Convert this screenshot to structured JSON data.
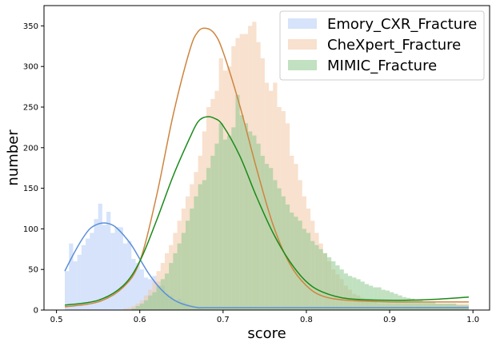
{
  "chart_data": {
    "type": "histogram",
    "xlabel": "score",
    "ylabel": "number",
    "xlim": [
      0.485,
      1.02
    ],
    "ylim": [
      0,
      375
    ],
    "xticks": [
      0.5,
      0.6,
      0.7,
      0.8,
      0.9,
      1.0
    ],
    "xtick_labels": [
      "0.5",
      "0.6",
      "0.7",
      "0.8",
      "0.9",
      "1.0"
    ],
    "yticks": [
      0,
      50,
      100,
      150,
      200,
      250,
      300,
      350
    ],
    "ytick_labels": [
      "0",
      "50",
      "100",
      "150",
      "200",
      "250",
      "300",
      "350"
    ],
    "legend_position": "top-right",
    "grid": false,
    "bin_start": 0.51,
    "bin_width": 0.005,
    "series": [
      {
        "name": "Emory_CXR_Fracture",
        "fill_color": "#aec7f5",
        "fill_opacity": 0.5,
        "line_color": "#5b8fd9",
        "counts": [
          48,
          82,
          60,
          68,
          80,
          88,
          95,
          112,
          131,
          105,
          121,
          95,
          102,
          102,
          82,
          85,
          63,
          58,
          50,
          40,
          38,
          42,
          35,
          30,
          20,
          18,
          12,
          14,
          10,
          8,
          6,
          5,
          3,
          3,
          2,
          2,
          2,
          2,
          2,
          2,
          2,
          2,
          2,
          2,
          2,
          2,
          2,
          2,
          2,
          2,
          2,
          2,
          2,
          2,
          2,
          2,
          2,
          2,
          2,
          2,
          2,
          2,
          2,
          2,
          2,
          2,
          2,
          2,
          2,
          2,
          2,
          2,
          2,
          2,
          2,
          2,
          2,
          2,
          2,
          2,
          2,
          2,
          2,
          2,
          2,
          2,
          2,
          2,
          2,
          2,
          2,
          2,
          2,
          2,
          2,
          2,
          2
        ],
        "fit_x": [
          0.51,
          0.52,
          0.53,
          0.54,
          0.55,
          0.56,
          0.57,
          0.58,
          0.59,
          0.6,
          0.61,
          0.62,
          0.63,
          0.64,
          0.65,
          0.66,
          0.67,
          0.68,
          0.7,
          0.75,
          0.8,
          0.85,
          0.9,
          0.95,
          0.995
        ],
        "fit_y": [
          48,
          68,
          86,
          100,
          106,
          107,
          103,
          93,
          80,
          63,
          46,
          32,
          21,
          13,
          8,
          5,
          3,
          3,
          3,
          3,
          3,
          3,
          3,
          3,
          3
        ]
      },
      {
        "name": "CheXpert_Fracture",
        "fill_color": "#f2c9a5",
        "fill_opacity": 0.55,
        "line_color": "#cd853f",
        "counts": [
          0,
          0,
          0,
          0,
          0,
          0,
          0,
          0,
          0,
          0,
          0,
          0,
          0,
          0,
          2,
          3,
          5,
          8,
          12,
          18,
          25,
          35,
          48,
          58,
          70,
          80,
          95,
          110,
          125,
          140,
          155,
          170,
          190,
          220,
          250,
          260,
          270,
          310,
          295,
          300,
          325,
          335,
          340,
          340,
          350,
          355,
          330,
          310,
          280,
          270,
          280,
          250,
          245,
          230,
          190,
          180,
          160,
          140,
          125,
          110,
          95,
          82,
          70,
          60,
          50,
          44,
          38,
          30,
          25,
          20,
          18,
          15,
          12,
          10,
          10,
          8,
          8,
          8,
          8,
          8,
          8,
          8,
          8,
          8,
          8,
          8,
          8,
          8,
          8,
          8,
          8,
          8,
          8,
          8,
          8,
          8,
          8
        ],
        "fit_x": [
          0.51,
          0.55,
          0.58,
          0.6,
          0.62,
          0.64,
          0.66,
          0.67,
          0.68,
          0.69,
          0.7,
          0.72,
          0.74,
          0.76,
          0.78,
          0.8,
          0.82,
          0.85,
          0.9,
          0.95,
          0.995
        ],
        "fit_y": [
          4,
          10,
          28,
          60,
          140,
          240,
          320,
          343,
          347,
          340,
          318,
          252,
          175,
          105,
          57,
          30,
          17,
          12,
          10,
          10,
          10
        ]
      },
      {
        "name": "MIMIC_Fracture",
        "fill_color": "#8ec98e",
        "fill_opacity": 0.55,
        "line_color": "#1a8a1a",
        "counts": [
          0,
          0,
          0,
          0,
          0,
          0,
          0,
          0,
          0,
          0,
          0,
          0,
          0,
          0,
          0,
          0,
          2,
          5,
          8,
          12,
          18,
          22,
          30,
          38,
          45,
          58,
          70,
          82,
          95,
          110,
          125,
          140,
          155,
          160,
          175,
          190,
          205,
          230,
          210,
          215,
          225,
          265,
          240,
          230,
          220,
          215,
          205,
          190,
          180,
          175,
          160,
          150,
          140,
          130,
          120,
          115,
          110,
          100,
          95,
          85,
          80,
          75,
          70,
          65,
          60,
          55,
          50,
          45,
          42,
          40,
          38,
          35,
          32,
          30,
          28,
          28,
          25,
          24,
          22,
          20,
          18,
          16,
          15,
          14,
          12,
          12,
          10,
          10,
          10,
          8,
          8,
          8,
          8,
          8,
          6,
          6,
          6
        ],
        "fit_x": [
          0.51,
          0.55,
          0.58,
          0.6,
          0.62,
          0.64,
          0.66,
          0.67,
          0.68,
          0.69,
          0.7,
          0.72,
          0.74,
          0.76,
          0.78,
          0.8,
          0.82,
          0.85,
          0.9,
          0.95,
          0.995
        ],
        "fit_y": [
          6,
          12,
          30,
          60,
          110,
          165,
          212,
          232,
          238,
          236,
          227,
          190,
          140,
          95,
          60,
          35,
          22,
          14,
          12,
          13,
          16
        ]
      }
    ]
  }
}
